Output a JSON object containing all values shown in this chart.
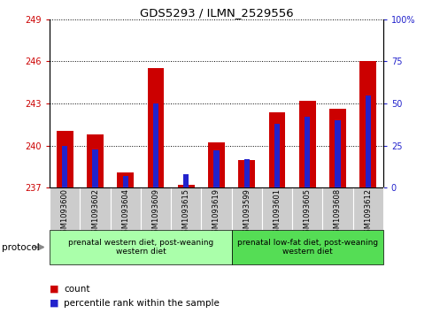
{
  "title": "GDS5293 / ILMN_2529556",
  "samples": [
    "GSM1093600",
    "GSM1093602",
    "GSM1093604",
    "GSM1093609",
    "GSM1093615",
    "GSM1093619",
    "GSM1093599",
    "GSM1093601",
    "GSM1093605",
    "GSM1093608",
    "GSM1093612"
  ],
  "red_values": [
    241.05,
    240.8,
    238.1,
    245.5,
    237.2,
    240.25,
    239.0,
    242.4,
    243.2,
    242.65,
    246.05
  ],
  "blue_values": [
    25,
    23,
    7,
    50,
    8,
    22,
    17,
    38,
    42,
    40,
    55
  ],
  "red_base": 237,
  "ylim_left": [
    237,
    249
  ],
  "ylim_right": [
    0,
    100
  ],
  "yticks_left": [
    237,
    240,
    243,
    246,
    249
  ],
  "yticks_right": [
    0,
    25,
    50,
    75,
    100
  ],
  "ytick_labels_right": [
    "0",
    "25",
    "50",
    "75",
    "100%"
  ],
  "bar_color_red": "#cc0000",
  "bar_color_blue": "#2222cc",
  "group1_label": "prenatal western diet, post-weaning\nwestern diet",
  "group2_label": "prenatal low-fat diet, post-weaning\nwestern diet",
  "group1_count": 6,
  "group2_count": 5,
  "group1_bg": "#aaffaa",
  "group2_bg": "#55dd55",
  "sample_bg": "#cccccc",
  "protocol_label": "protocol",
  "legend_red": "count",
  "legend_blue": "percentile rank within the sample"
}
